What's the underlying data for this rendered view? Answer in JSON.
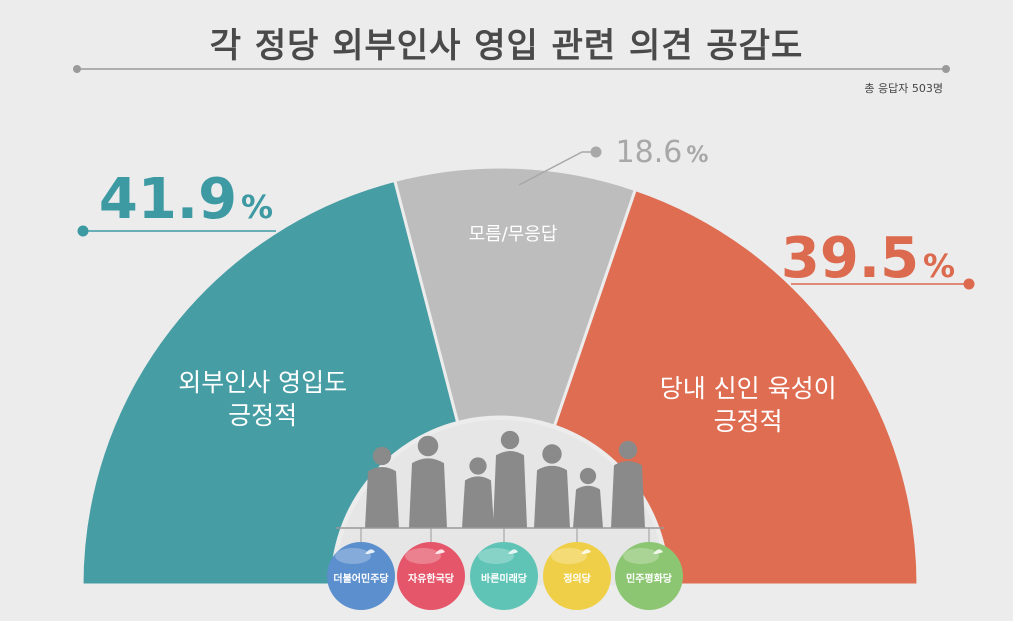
{
  "title": "각 정당 외부인사 영입 관련 의견 공감도",
  "respondents": "총 응답자 503명",
  "chart_data": {
    "type": "pie",
    "shape": "half-donut",
    "slices": [
      {
        "label_lines": [
          "외부인사 영입도",
          "긍정적"
        ],
        "value": 41.9,
        "value_text": "41.9",
        "unit": "%",
        "color": "#469da4"
      },
      {
        "label_lines": [
          "모름/무응답"
        ],
        "value": 18.6,
        "value_text": "18.6",
        "unit": "%",
        "color": "#bdbdbd"
      },
      {
        "label_lines": [
          "당내 신인 육성이",
          "긍정적"
        ],
        "value": 39.5,
        "value_text": "39.5",
        "unit": "%",
        "color": "#df6d52"
      }
    ],
    "value_colors": [
      "#3d9aa3",
      "#a8a8a8",
      "#dc6a4f"
    ]
  },
  "parties": [
    {
      "name": "더불어민주당",
      "color": "#5b8fcd",
      "icon": "party-logo-icon"
    },
    {
      "name": "자유한국당",
      "color": "#e5566a",
      "icon": "party-logo-icon"
    },
    {
      "name": "바른미래당",
      "color": "#5fc4b6",
      "icon": "party-logo-icon"
    },
    {
      "name": "정의당",
      "color": "#f0cf48",
      "icon": "party-logo-icon"
    },
    {
      "name": "민주평화당",
      "color": "#8cc672",
      "icon": "party-logo-icon"
    }
  ],
  "people_icon": "silhouette-crowd-icon"
}
